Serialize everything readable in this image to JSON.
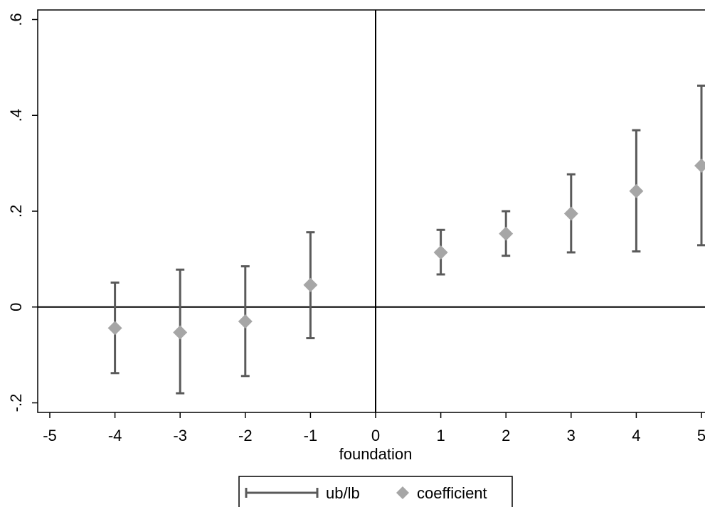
{
  "chart_data": {
    "type": "scatter",
    "title": "",
    "xlabel": "foundation",
    "ylabel": "",
    "xlim": [
      -5,
      5
    ],
    "ylim": [
      -0.22,
      0.62
    ],
    "xticks": [
      -5,
      -4,
      -3,
      -2,
      -1,
      0,
      1,
      2,
      3,
      4,
      5
    ],
    "xtick_labels": [
      "-5",
      "-4",
      "-3",
      "-2",
      "-1",
      "0",
      "1",
      "2",
      "3",
      "4",
      "5"
    ],
    "yticks": [
      -0.2,
      0,
      0.2,
      0.4,
      0.6
    ],
    "ytick_labels": [
      "-.2",
      "0",
      ".2",
      ".4",
      ".6"
    ],
    "reference_lines": {
      "x": 0,
      "y": 0
    },
    "grid": false,
    "legend_position": "bottom",
    "series": [
      {
        "name": "ub/lb",
        "kind": "range",
        "x": [
          -4,
          -3,
          -2,
          -1,
          1,
          2,
          3,
          4,
          5
        ],
        "ub": [
          0.051,
          0.078,
          0.085,
          0.156,
          0.161,
          0.2,
          0.277,
          0.369,
          0.462
        ],
        "lb": [
          -0.138,
          -0.18,
          -0.144,
          -0.065,
          0.068,
          0.107,
          0.114,
          0.116,
          0.129
        ],
        "color": "#5a5a5a"
      },
      {
        "name": "coefficient",
        "kind": "point",
        "x": [
          -4,
          -3,
          -2,
          -1,
          1,
          2,
          3,
          4,
          5
        ],
        "y": [
          -0.044,
          -0.053,
          -0.03,
          0.046,
          0.114,
          0.153,
          0.195,
          0.242,
          0.295
        ],
        "color": "#a6a6a6"
      }
    ]
  }
}
